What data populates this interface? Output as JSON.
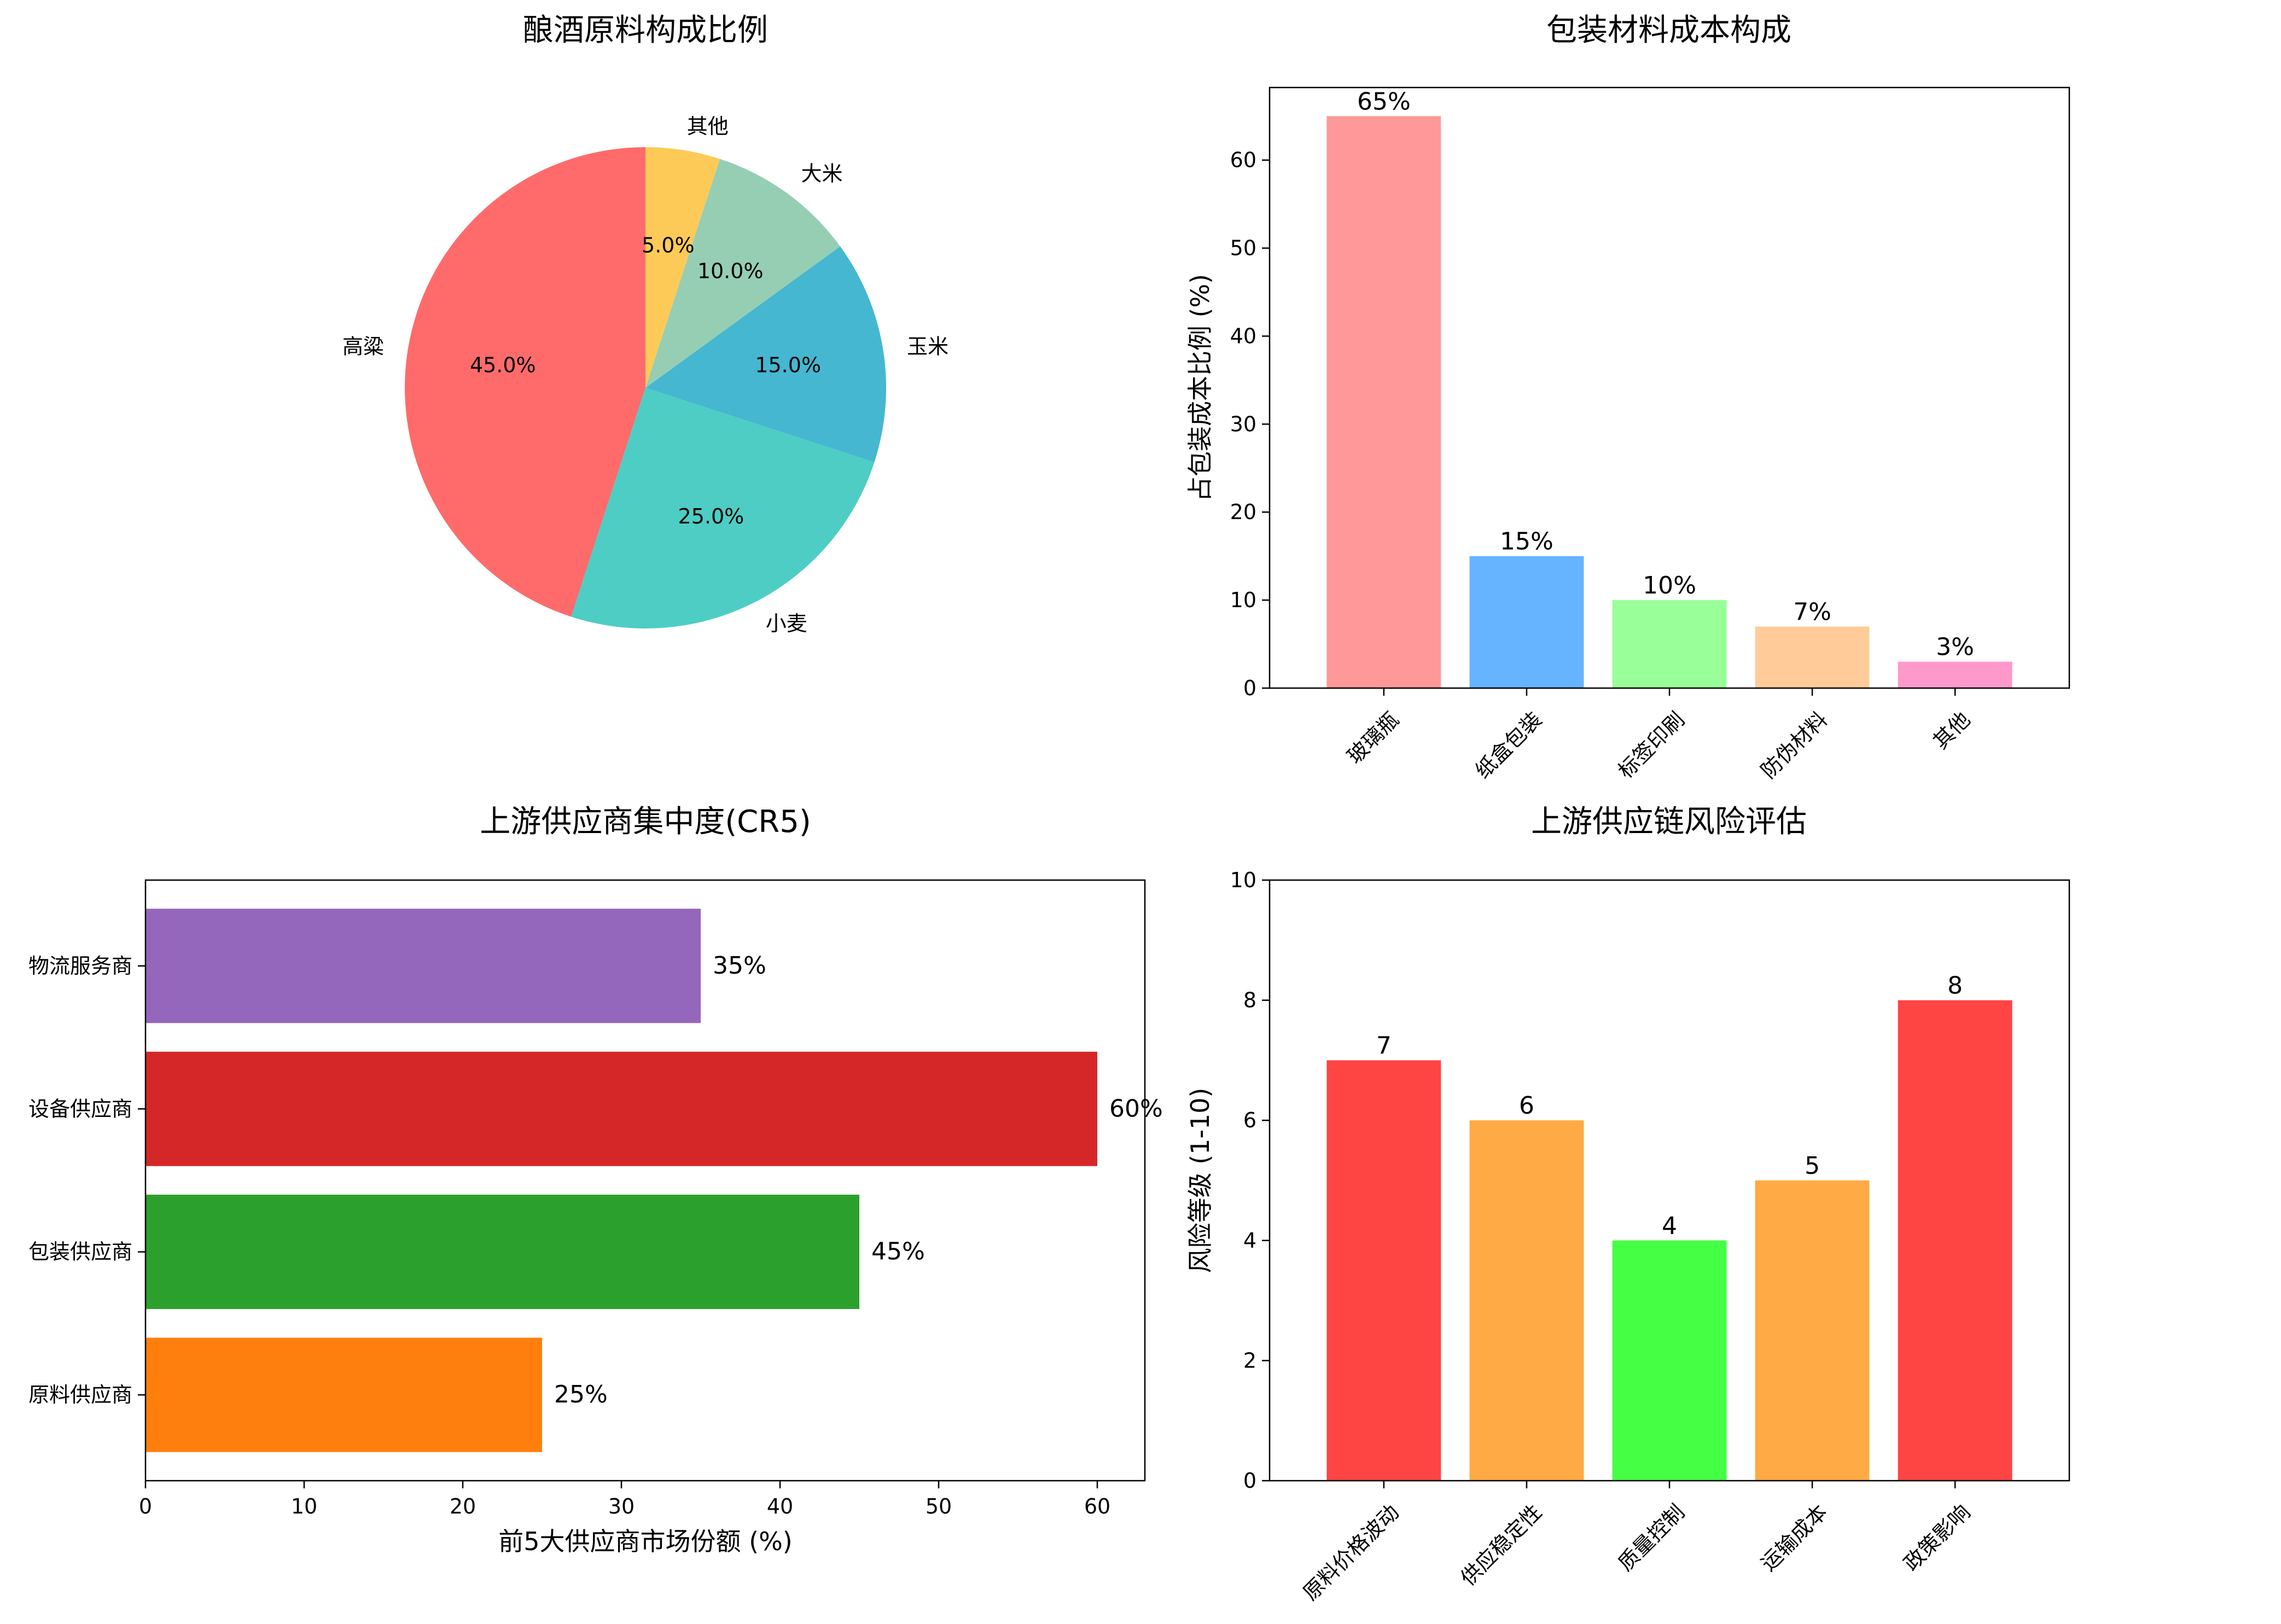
{
  "chart_data": [
    {
      "type": "pie",
      "title": "酿酒原料构成比例",
      "categories": [
        "高粱",
        "小麦",
        "玉米",
        "大米",
        "其他"
      ],
      "values": [
        45.0,
        25.0,
        15.0,
        10.0,
        5.0
      ],
      "value_labels": [
        "45.0%",
        "25.0%",
        "15.0%",
        "10.0%",
        "5.0%"
      ],
      "colors": [
        "#ff6b6b",
        "#4ecdc4",
        "#45b7d1",
        "#96ceb4",
        "#feca57"
      ],
      "start_angle_deg": 90,
      "direction": "counterclockwise"
    },
    {
      "type": "bar",
      "title": "包装材料成本构成",
      "categories": [
        "玻璃瓶",
        "纸盒包装",
        "标签印刷",
        "防伪材料",
        "其他"
      ],
      "values": [
        65,
        15,
        10,
        7,
        3
      ],
      "value_labels": [
        "65%",
        "15%",
        "10%",
        "7%",
        "3%"
      ],
      "colors": [
        "#ff9999",
        "#66b3ff",
        "#99ff99",
        "#ffcc99",
        "#ff99cc"
      ],
      "xlabel": "",
      "ylabel": "占包装成本比例 (%)",
      "ylim": [
        0,
        68.25
      ],
      "yticks": [
        0,
        10,
        20,
        30,
        40,
        50,
        60
      ],
      "xtick_rotation_deg": 45
    },
    {
      "type": "barh",
      "title": "上游供应商集中度(CR5)",
      "categories": [
        "原料供应商",
        "包装供应商",
        "设备供应商",
        "物流服务商"
      ],
      "values": [
        25,
        45,
        60,
        35
      ],
      "value_labels": [
        "25%",
        "45%",
        "60%",
        "35%"
      ],
      "colors": [
        "#ff7f0e",
        "#2ca02c",
        "#d62728",
        "#9467bd"
      ],
      "xlabel": "前5大供应商市场份额 (%)",
      "ylabel": "",
      "xlim": [
        0,
        63
      ],
      "xticks": [
        0,
        10,
        20,
        30,
        40,
        50,
        60
      ]
    },
    {
      "type": "bar",
      "title": "上游供应链风险评估",
      "categories": [
        "原料价格波动",
        "供应稳定性",
        "质量控制",
        "运输成本",
        "政策影响"
      ],
      "values": [
        7,
        6,
        4,
        5,
        8
      ],
      "value_labels": [
        "7",
        "6",
        "4",
        "5",
        "8"
      ],
      "colors": [
        "#ff4444",
        "#ffaa44",
        "#44ff44",
        "#ffaa44",
        "#ff4444"
      ],
      "xlabel": "",
      "ylabel": "风险等级 (1-10)",
      "ylim": [
        0,
        10
      ],
      "yticks": [
        0,
        2,
        4,
        6,
        8,
        10
      ],
      "xtick_rotation_deg": 45
    }
  ]
}
